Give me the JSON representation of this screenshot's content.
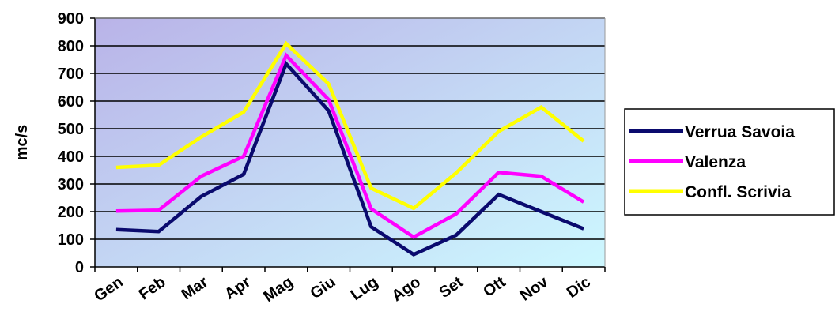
{
  "chart_data": {
    "type": "line",
    "title": "",
    "xlabel": "",
    "ylabel": "mc/s",
    "ylim": [
      0,
      900
    ],
    "yticks": [
      0,
      100,
      200,
      300,
      400,
      500,
      600,
      700,
      800,
      900
    ],
    "grid": true,
    "legend_position": "right",
    "categories": [
      "Gen",
      "Feb",
      "Mar",
      "Apr",
      "Mag",
      "Giu",
      "Lug",
      "Ago",
      "Set",
      "Ott",
      "Nov",
      "Dic"
    ],
    "series": [
      {
        "name": "Verrua Savoia",
        "color": "#0a0a6e",
        "values": [
          135,
          128,
          255,
          335,
          735,
          565,
          145,
          45,
          115,
          262,
          200,
          138
        ]
      },
      {
        "name": "Valenza",
        "color": "#ff00ff",
        "values": [
          202,
          205,
          328,
          400,
          765,
          605,
          210,
          108,
          192,
          342,
          328,
          235
        ]
      },
      {
        "name": "Confl. Scrivia",
        "color": "#ffff00",
        "values": [
          360,
          368,
          470,
          560,
          808,
          662,
          285,
          212,
          340,
          490,
          578,
          455
        ]
      }
    ],
    "plot_background": {
      "from": "#b9b3e8",
      "to": "#cdf8ff"
    }
  }
}
